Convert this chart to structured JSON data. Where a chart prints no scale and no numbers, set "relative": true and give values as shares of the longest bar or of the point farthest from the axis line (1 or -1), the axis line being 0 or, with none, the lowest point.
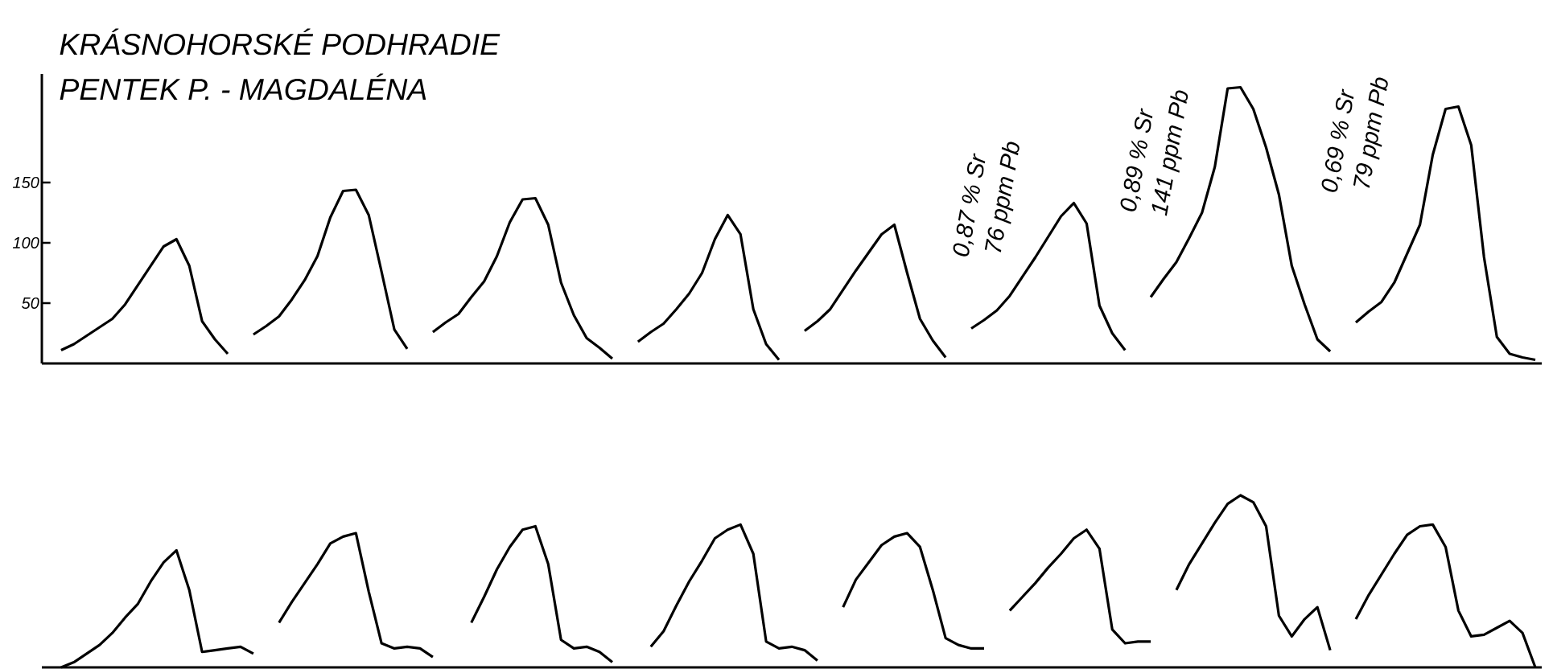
{
  "chart_data": [
    {
      "type": "line",
      "title": "KRÁSNOHORSKÉ PODHRADIE",
      "subtitle": "PENTEK P. - MAGDALÉNA",
      "categories": [
        null,
        null,
        null,
        null,
        null,
        null,
        null,
        null,
        null,
        null,
        null,
        null,
        null,
        null,
        null,
        null,
        null,
        null,
        null,
        null,
        null,
        null,
        null,
        null,
        null,
        null,
        null,
        null,
        null,
        null,
        null,
        null,
        null,
        null,
        null,
        null,
        null,
        null,
        null,
        null,
        null,
        null,
        null,
        null,
        null,
        null,
        null,
        null,
        null,
        null,
        null,
        null,
        null,
        null,
        null,
        null,
        null,
        null,
        null,
        null,
        null,
        null,
        null,
        null,
        null,
        null,
        null,
        null,
        null,
        null,
        null,
        null,
        null,
        null,
        null,
        null,
        null,
        null,
        null,
        null,
        null,
        null,
        null,
        null,
        null,
        null,
        null,
        null,
        null,
        null,
        null,
        null,
        null,
        null,
        null,
        null,
        null,
        null,
        null,
        null,
        null,
        null,
        null,
        null,
        null,
        null,
        null,
        null,
        null,
        null,
        null,
        null,
        null,
        null,
        null,
        null,
        null
      ],
      "series": [
        {
          "color": "#000000",
          "values": [
            null,
            11,
            16,
            23,
            30,
            37,
            49,
            65,
            81,
            97,
            103,
            81,
            35,
            20,
            8,
            null,
            null,
            null,
            null,
            null,
            null,
            null,
            null,
            null,
            null,
            null,
            null,
            null,
            null,
            null,
            null,
            null,
            null,
            null,
            null,
            null,
            null,
            null,
            null,
            null,
            null,
            null,
            null,
            null,
            null,
            null,
            null,
            null,
            null,
            null,
            null,
            null,
            null,
            null,
            null,
            null,
            null,
            null,
            null,
            null,
            null,
            null,
            null,
            null,
            null,
            null,
            null,
            null,
            null,
            null,
            null,
            null,
            null,
            null,
            null,
            null,
            null,
            null,
            null,
            null,
            null,
            null,
            null,
            null,
            null,
            null,
            null,
            null,
            null,
            null,
            null,
            null,
            null,
            null,
            null,
            null,
            null,
            null,
            null,
            null,
            null,
            null,
            null,
            null,
            null,
            null,
            null,
            null,
            null,
            null,
            null,
            null,
            null,
            null,
            null,
            null,
            null
          ]
        },
        {
          "color": "#000000",
          "values": [
            null,
            null,
            null,
            null,
            null,
            null,
            null,
            null,
            null,
            null,
            null,
            null,
            null,
            null,
            null,
            null,
            24,
            31,
            39,
            53,
            69,
            89,
            121,
            143,
            144,
            123,
            76,
            28,
            12,
            null,
            null,
            null,
            null,
            null,
            null,
            null,
            null,
            null,
            null,
            null,
            null,
            null,
            null,
            null,
            null,
            null,
            null,
            null,
            null,
            null,
            null,
            null,
            null,
            null,
            null,
            null,
            null,
            null,
            null,
            null,
            null,
            null,
            null,
            null,
            null,
            null,
            null,
            null,
            null,
            null,
            null,
            null,
            null,
            null,
            null,
            null,
            null,
            null,
            null,
            null,
            null,
            null,
            null,
            null,
            null,
            null,
            null,
            null,
            null,
            null,
            null,
            null,
            null,
            null,
            null,
            null,
            null,
            null,
            null,
            null,
            null,
            null,
            null,
            null,
            null,
            null,
            null,
            null,
            null,
            null,
            null,
            null,
            null,
            null,
            null,
            null,
            null
          ]
        },
        {
          "color": "#000000",
          "values": [
            null,
            null,
            null,
            null,
            null,
            null,
            null,
            null,
            null,
            null,
            null,
            null,
            null,
            null,
            null,
            null,
            null,
            null,
            null,
            null,
            null,
            null,
            null,
            null,
            null,
            null,
            null,
            null,
            null,
            null,
            26,
            34,
            41,
            55,
            68,
            89,
            117,
            136,
            137,
            115,
            67,
            40,
            21,
            13,
            4,
            null,
            null,
            null,
            null,
            null,
            null,
            null,
            null,
            null,
            null,
            null,
            null,
            null,
            null,
            null,
            null,
            null,
            null,
            null,
            null,
            null,
            null,
            null,
            null,
            null,
            null,
            null,
            null,
            null,
            null,
            null,
            null,
            null,
            null,
            null,
            null,
            null,
            null,
            null,
            null,
            null,
            null,
            null,
            null,
            null,
            null,
            null,
            null,
            null,
            null,
            null,
            null,
            null,
            null,
            null,
            null,
            null,
            null,
            null,
            null,
            null,
            null,
            null,
            null,
            null,
            null,
            null,
            null,
            null,
            null,
            null,
            null
          ]
        },
        {
          "color": "#000000",
          "values": [
            null,
            null,
            null,
            null,
            null,
            null,
            null,
            null,
            null,
            null,
            null,
            null,
            null,
            null,
            null,
            null,
            null,
            null,
            null,
            null,
            null,
            null,
            null,
            null,
            null,
            null,
            null,
            null,
            null,
            null,
            null,
            null,
            null,
            null,
            null,
            null,
            null,
            null,
            null,
            null,
            null,
            null,
            null,
            null,
            null,
            null,
            18,
            26,
            33,
            45,
            58,
            75,
            103,
            123,
            107,
            45,
            16,
            3,
            null,
            null,
            null,
            null,
            null,
            null,
            null,
            null,
            null,
            null,
            null,
            null,
            null,
            null,
            null,
            null,
            null,
            null,
            null,
            null,
            null,
            null,
            null,
            null,
            null,
            null,
            null,
            null,
            null,
            null,
            null,
            null,
            null,
            null,
            null,
            null,
            null,
            null,
            null,
            null,
            null,
            null,
            null,
            null,
            null,
            null,
            null,
            null,
            null,
            null,
            null,
            null,
            null,
            null,
            null,
            null,
            null,
            null,
            null
          ]
        },
        {
          "color": "#000000",
          "values": [
            null,
            null,
            null,
            null,
            null,
            null,
            null,
            null,
            null,
            null,
            null,
            null,
            null,
            null,
            null,
            null,
            null,
            null,
            null,
            null,
            null,
            null,
            null,
            null,
            null,
            null,
            null,
            null,
            null,
            null,
            null,
            null,
            null,
            null,
            null,
            null,
            null,
            null,
            null,
            null,
            null,
            null,
            null,
            null,
            null,
            null,
            null,
            null,
            null,
            null,
            null,
            null,
            null,
            null,
            null,
            null,
            null,
            null,
            null,
            27,
            35,
            45,
            61,
            77,
            92,
            107,
            115,
            75,
            37,
            19,
            5,
            null,
            null,
            null,
            null,
            null,
            null,
            null,
            null,
            null,
            null,
            null,
            null,
            null,
            null,
            null,
            null,
            null,
            null,
            null,
            null,
            null,
            null,
            null,
            null,
            null,
            null,
            null,
            null,
            null,
            null,
            null,
            null,
            null,
            null,
            null,
            null,
            null,
            null,
            null,
            null,
            null,
            null,
            null,
            null,
            null,
            null
          ]
        },
        {
          "color": "#000000",
          "values": [
            null,
            null,
            null,
            null,
            null,
            null,
            null,
            null,
            null,
            null,
            null,
            null,
            null,
            null,
            null,
            null,
            null,
            null,
            null,
            null,
            null,
            null,
            null,
            null,
            null,
            null,
            null,
            null,
            null,
            null,
            null,
            null,
            null,
            null,
            null,
            null,
            null,
            null,
            null,
            null,
            null,
            null,
            null,
            null,
            null,
            null,
            null,
            null,
            null,
            null,
            null,
            null,
            null,
            null,
            null,
            null,
            null,
            null,
            null,
            null,
            null,
            null,
            null,
            null,
            null,
            null,
            null,
            null,
            null,
            null,
            null,
            null,
            29,
            36,
            44,
            56,
            72,
            88,
            105,
            122,
            133,
            116,
            48,
            25,
            11,
            null,
            null,
            null,
            null,
            null,
            null,
            null,
            null,
            null,
            null,
            null,
            null,
            null,
            null,
            null,
            null,
            null,
            null,
            null,
            null,
            null,
            null,
            null,
            null,
            null,
            null,
            null,
            null,
            null,
            null,
            null,
            null
          ]
        },
        {
          "color": "#000000",
          "values": [
            null,
            null,
            null,
            null,
            null,
            null,
            null,
            null,
            null,
            null,
            null,
            null,
            null,
            null,
            null,
            null,
            null,
            null,
            null,
            null,
            null,
            null,
            null,
            null,
            null,
            null,
            null,
            null,
            null,
            null,
            null,
            null,
            null,
            null,
            null,
            null,
            null,
            null,
            null,
            null,
            null,
            null,
            null,
            null,
            null,
            null,
            null,
            null,
            null,
            null,
            null,
            null,
            null,
            null,
            null,
            null,
            null,
            null,
            null,
            null,
            null,
            null,
            null,
            null,
            null,
            null,
            null,
            null,
            null,
            null,
            null,
            null,
            null,
            null,
            null,
            null,
            null,
            null,
            null,
            null,
            null,
            null,
            null,
            null,
            null,
            null,
            55,
            70,
            84,
            104,
            125,
            163,
            228,
            229,
            211,
            179,
            140,
            81,
            49,
            20,
            10,
            null,
            null,
            null,
            null,
            null,
            null,
            null,
            null,
            null,
            null,
            null,
            null,
            null,
            null,
            null,
            null
          ]
        },
        {
          "color": "#000000",
          "values": [
            null,
            null,
            null,
            null,
            null,
            null,
            null,
            null,
            null,
            null,
            null,
            null,
            null,
            null,
            null,
            null,
            null,
            null,
            null,
            null,
            null,
            null,
            null,
            null,
            null,
            null,
            null,
            null,
            null,
            null,
            null,
            null,
            null,
            null,
            null,
            null,
            null,
            null,
            null,
            null,
            null,
            null,
            null,
            null,
            null,
            null,
            null,
            null,
            null,
            null,
            null,
            null,
            null,
            null,
            null,
            null,
            null,
            null,
            null,
            null,
            null,
            null,
            null,
            null,
            null,
            null,
            null,
            null,
            null,
            null,
            null,
            null,
            null,
            null,
            null,
            null,
            null,
            null,
            null,
            null,
            null,
            null,
            null,
            null,
            null,
            null,
            null,
            null,
            null,
            null,
            null,
            null,
            null,
            null,
            null,
            null,
            null,
            null,
            null,
            null,
            null,
            null,
            34,
            43,
            51,
            67,
            91,
            115,
            173,
            211,
            213,
            181,
            88,
            22,
            8,
            5,
            3
          ]
        }
      ],
      "ylim": [
        0,
        240
      ],
      "yticks": [
        50,
        100,
        150
      ],
      "tick_labels": "y",
      "annotations": [
        "0,87 % Sr",
        "76 ppm Pb",
        "0,89 % Sr",
        "141 ppm Pb",
        "0,69 % Sr",
        "79 ppm Pb"
      ]
    },
    {
      "type": "line",
      "relative": true,
      "categories": [
        null,
        null,
        null,
        null,
        null,
        null,
        null,
        null,
        null,
        null,
        null,
        null,
        null,
        null,
        null,
        null,
        null,
        null,
        null,
        null,
        null,
        null,
        null,
        null,
        null,
        null,
        null,
        null,
        null,
        null,
        null,
        null,
        null,
        null,
        null,
        null,
        null,
        null,
        null,
        null,
        null,
        null,
        null,
        null,
        null,
        null,
        null,
        null,
        null,
        null,
        null,
        null,
        null,
        null,
        null,
        null,
        null,
        null,
        null,
        null,
        null,
        null,
        null,
        null,
        null,
        null,
        null,
        null,
        null,
        null,
        null,
        null,
        null,
        null,
        null,
        null,
        null,
        null,
        null,
        null,
        null,
        null,
        null,
        null,
        null,
        null,
        null,
        null,
        null,
        null,
        null,
        null,
        null,
        null,
        null,
        null,
        null,
        null,
        null,
        null,
        null,
        null,
        null,
        null,
        null,
        null,
        null,
        null,
        null,
        null,
        null,
        null,
        null,
        null,
        null,
        null,
        null
      ],
      "series": [
        {
          "color": "#000000",
          "values": [
            null,
            0,
            0.03,
            0.08,
            0.13,
            0.2,
            0.29,
            0.37,
            0.5,
            0.61,
            0.68,
            0.45,
            0.09,
            0.1,
            0.11,
            0.12,
            0.08,
            null,
            null,
            null,
            null,
            null,
            null,
            null,
            null,
            null,
            null,
            null,
            null,
            null,
            null,
            null,
            null,
            null,
            null,
            null,
            null,
            null,
            null,
            null,
            null,
            null,
            null,
            null,
            null,
            null,
            null,
            null,
            null,
            null,
            null,
            null,
            null,
            null,
            null,
            null,
            null,
            null,
            null,
            null,
            null,
            null,
            null,
            null,
            null,
            null,
            null,
            null,
            null,
            null,
            null,
            null,
            null,
            null,
            null,
            null,
            null,
            null,
            null,
            null,
            null,
            null,
            null,
            null,
            null,
            null,
            null,
            null,
            null,
            null,
            null,
            null,
            null,
            null,
            null,
            null,
            null,
            null,
            null,
            null,
            null,
            null,
            null,
            null,
            null,
            null,
            null,
            null,
            null,
            null,
            null,
            null,
            null,
            null,
            null,
            null,
            null
          ]
        },
        {
          "color": "#000000",
          "values": [
            null,
            null,
            null,
            null,
            null,
            null,
            null,
            null,
            null,
            null,
            null,
            null,
            null,
            null,
            null,
            null,
            null,
            null,
            0.26,
            0.38,
            0.49,
            0.6,
            0.72,
            0.76,
            0.78,
            0.44,
            0.14,
            0.11,
            0.12,
            0.11,
            0.06,
            null,
            null,
            null,
            null,
            null,
            null,
            null,
            null,
            null,
            null,
            null,
            null,
            null,
            null,
            null,
            null,
            null,
            null,
            null,
            null,
            null,
            null,
            null,
            null,
            null,
            null,
            null,
            null,
            null,
            null,
            null,
            null,
            null,
            null,
            null,
            null,
            null,
            null,
            null,
            null,
            null,
            null,
            null,
            null,
            null,
            null,
            null,
            null,
            null,
            null,
            null,
            null,
            null,
            null,
            null,
            null,
            null,
            null,
            null,
            null,
            null,
            null,
            null,
            null,
            null,
            null,
            null,
            null,
            null,
            null,
            null,
            null,
            null,
            null,
            null,
            null,
            null,
            null,
            null,
            null,
            null,
            null,
            null,
            null,
            null,
            null
          ]
        },
        {
          "color": "#000000",
          "values": [
            null,
            null,
            null,
            null,
            null,
            null,
            null,
            null,
            null,
            null,
            null,
            null,
            null,
            null,
            null,
            null,
            null,
            null,
            null,
            null,
            null,
            null,
            null,
            null,
            null,
            null,
            null,
            null,
            null,
            null,
            null,
            null,
            null,
            0.26,
            0.41,
            0.57,
            0.7,
            0.8,
            0.82,
            0.6,
            0.16,
            0.11,
            0.12,
            0.09,
            0.03,
            null,
            null,
            null,
            null,
            null,
            null,
            null,
            null,
            null,
            null,
            null,
            null,
            null,
            null,
            null,
            null,
            null,
            null,
            null,
            null,
            null,
            null,
            null,
            null,
            null,
            null,
            null,
            null,
            null,
            null,
            null,
            null,
            null,
            null,
            null,
            null,
            null,
            null,
            null,
            null,
            null,
            null,
            null,
            null,
            null,
            null,
            null,
            null,
            null,
            null,
            null,
            null,
            null,
            null,
            null,
            null,
            null,
            null,
            null,
            null,
            null,
            null,
            null,
            null,
            null,
            null,
            null,
            null,
            null,
            null,
            null,
            null
          ]
        },
        {
          "color": "#000000",
          "values": [
            null,
            null,
            null,
            null,
            null,
            null,
            null,
            null,
            null,
            null,
            null,
            null,
            null,
            null,
            null,
            null,
            null,
            null,
            null,
            null,
            null,
            null,
            null,
            null,
            null,
            null,
            null,
            null,
            null,
            null,
            null,
            null,
            null,
            null,
            null,
            null,
            null,
            null,
            null,
            null,
            null,
            null,
            null,
            null,
            null,
            null,
            null,
            0.12,
            0.21,
            0.36,
            0.5,
            0.62,
            0.75,
            0.8,
            0.83,
            0.66,
            0.15,
            0.11,
            0.12,
            0.1,
            0.04,
            null,
            null,
            null,
            null,
            null,
            null,
            null,
            null,
            null,
            null,
            null,
            null,
            null,
            null,
            null,
            null,
            null,
            null,
            null,
            null,
            null,
            null,
            null,
            null,
            null,
            null,
            null,
            null,
            null,
            null,
            null,
            null,
            null,
            null,
            null,
            null,
            null,
            null,
            null,
            null,
            null,
            null,
            null,
            null,
            null,
            null,
            null,
            null,
            null,
            null,
            null,
            null,
            null,
            null,
            null,
            null
          ]
        },
        {
          "color": "#000000",
          "values": [
            null,
            null,
            null,
            null,
            null,
            null,
            null,
            null,
            null,
            null,
            null,
            null,
            null,
            null,
            null,
            null,
            null,
            null,
            null,
            null,
            null,
            null,
            null,
            null,
            null,
            null,
            null,
            null,
            null,
            null,
            null,
            null,
            null,
            null,
            null,
            null,
            null,
            null,
            null,
            null,
            null,
            null,
            null,
            null,
            null,
            null,
            null,
            null,
            null,
            null,
            null,
            null,
            null,
            null,
            null,
            null,
            null,
            null,
            null,
            null,
            null,
            null,
            0.35,
            0.51,
            0.61,
            0.71,
            0.76,
            0.78,
            0.7,
            0.45,
            0.17,
            0.13,
            0.11,
            0.11,
            null,
            null,
            null,
            null,
            null,
            null,
            null,
            null,
            null,
            null,
            null,
            null,
            null,
            null,
            null,
            null,
            null,
            null,
            null,
            null,
            null,
            null,
            null,
            null,
            null,
            null,
            null,
            null,
            null,
            null,
            null,
            null,
            null,
            null,
            null,
            null,
            null,
            null,
            null,
            null,
            null,
            null,
            null
          ]
        },
        {
          "color": "#000000",
          "values": [
            null,
            null,
            null,
            null,
            null,
            null,
            null,
            null,
            null,
            null,
            null,
            null,
            null,
            null,
            null,
            null,
            null,
            null,
            null,
            null,
            null,
            null,
            null,
            null,
            null,
            null,
            null,
            null,
            null,
            null,
            null,
            null,
            null,
            null,
            null,
            null,
            null,
            null,
            null,
            null,
            null,
            null,
            null,
            null,
            null,
            null,
            null,
            null,
            null,
            null,
            null,
            null,
            null,
            null,
            null,
            null,
            null,
            null,
            null,
            null,
            null,
            null,
            null,
            null,
            null,
            null,
            null,
            null,
            null,
            null,
            null,
            null,
            null,
            null,
            null,
            0.33,
            0.41,
            0.49,
            0.58,
            0.66,
            0.75,
            0.8,
            0.69,
            0.22,
            0.14,
            0.15,
            0.15,
            null,
            null,
            null,
            null,
            null,
            null,
            null,
            null,
            null,
            null,
            null,
            null,
            null,
            null,
            null,
            null,
            null,
            null,
            null,
            null,
            null,
            null,
            null,
            null,
            null,
            null,
            null,
            null,
            null,
            null
          ]
        },
        {
          "color": "#000000",
          "values": [
            null,
            null,
            null,
            null,
            null,
            null,
            null,
            null,
            null,
            null,
            null,
            null,
            null,
            null,
            null,
            null,
            null,
            null,
            null,
            null,
            null,
            null,
            null,
            null,
            null,
            null,
            null,
            null,
            null,
            null,
            null,
            null,
            null,
            null,
            null,
            null,
            null,
            null,
            null,
            null,
            null,
            null,
            null,
            null,
            null,
            null,
            null,
            null,
            null,
            null,
            null,
            null,
            null,
            null,
            null,
            null,
            null,
            null,
            null,
            null,
            null,
            null,
            null,
            null,
            null,
            null,
            null,
            null,
            null,
            null,
            null,
            null,
            null,
            null,
            null,
            null,
            null,
            null,
            null,
            null,
            null,
            null,
            null,
            null,
            null,
            null,
            null,
            null,
            0.45,
            0.6,
            0.72,
            0.84,
            0.95,
            1,
            0.96,
            0.82,
            0.3,
            0.18,
            0.28,
            0.35,
            0.1,
            null,
            null,
            null,
            null,
            null,
            null,
            null,
            null,
            null,
            null,
            null,
            null,
            null,
            null,
            null,
            null
          ]
        },
        {
          "color": "#000000",
          "values": [
            null,
            null,
            null,
            null,
            null,
            null,
            null,
            null,
            null,
            null,
            null,
            null,
            null,
            null,
            null,
            null,
            null,
            null,
            null,
            null,
            null,
            null,
            null,
            null,
            null,
            null,
            null,
            null,
            null,
            null,
            null,
            null,
            null,
            null,
            null,
            null,
            null,
            null,
            null,
            null,
            null,
            null,
            null,
            null,
            null,
            null,
            null,
            null,
            null,
            null,
            null,
            null,
            null,
            null,
            null,
            null,
            null,
            null,
            null,
            null,
            null,
            null,
            null,
            null,
            null,
            null,
            null,
            null,
            null,
            null,
            null,
            null,
            null,
            null,
            null,
            null,
            null,
            null,
            null,
            null,
            null,
            null,
            null,
            null,
            null,
            null,
            null,
            null,
            null,
            null,
            null,
            null,
            null,
            null,
            null,
            null,
            null,
            null,
            null,
            null,
            null,
            null,
            0.28,
            0.42,
            0.54,
            0.66,
            0.77,
            0.82,
            0.83,
            0.7,
            0.33,
            0.18,
            0.19,
            0.23,
            0.27,
            0.2,
            0
          ]
        }
      ]
    }
  ]
}
